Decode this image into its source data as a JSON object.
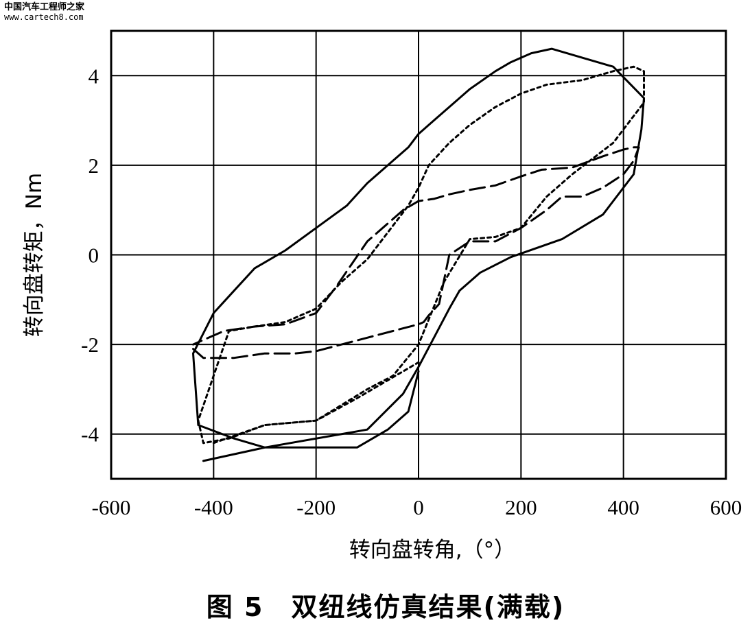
{
  "watermark": {
    "site_name": "中国汽车工程师之家",
    "url": "www.cartech8.com"
  },
  "caption": "图 5　双纽线仿真结果(满载)",
  "chart_data": {
    "type": "line",
    "xlabel": "转向盘转角,（°）",
    "ylabel": "转向盘转矩，Nm",
    "xlim": [
      -600,
      600
    ],
    "ylim": [
      -5,
      5
    ],
    "x_ticks": [
      -600,
      -400,
      -200,
      0,
      200,
      400,
      600
    ],
    "y_ticks": [
      4,
      2,
      0,
      -2,
      -4
    ],
    "grid": true,
    "series": [
      {
        "style": "solid",
        "x": [
          -420,
          -300,
          -100,
          -30,
          0,
          60,
          80,
          120,
          180,
          280,
          360,
          420,
          435,
          440,
          380,
          320,
          260,
          220,
          180,
          150,
          100,
          60,
          20,
          0,
          -20,
          -60,
          -100,
          -140,
          -200,
          -260,
          -320,
          -360,
          -400,
          -440,
          -430,
          -360,
          -300,
          -260,
          -200,
          -120,
          -60,
          -20,
          0
        ],
        "y": [
          -4.6,
          -4.3,
          -3.9,
          -3.1,
          -2.5,
          -1.2,
          -0.8,
          -0.4,
          -0.05,
          0.35,
          0.9,
          1.8,
          2.8,
          3.5,
          4.2,
          4.4,
          4.6,
          4.5,
          4.3,
          4.1,
          3.7,
          3.3,
          2.9,
          2.7,
          2.4,
          2.0,
          1.6,
          1.1,
          0.6,
          0.1,
          -0.3,
          -0.8,
          -1.3,
          -2.2,
          -3.8,
          -4.1,
          -4.3,
          -4.3,
          -4.3,
          -4.3,
          -3.9,
          -3.5,
          -2.6
        ]
      },
      {
        "style": "dotted",
        "x": [
          -400,
          -300,
          -200,
          -100,
          -50,
          0,
          50,
          100,
          150,
          200,
          250,
          300,
          380,
          440,
          440,
          420,
          380,
          320,
          250,
          200,
          150,
          100,
          60,
          20,
          0,
          -20,
          -60,
          -100,
          -150,
          -200,
          -260,
          -320,
          -370,
          -430,
          -420,
          -370,
          -300,
          -200,
          -120,
          -60,
          0
        ],
        "y": [
          -4.2,
          -3.8,
          -3.7,
          -3.0,
          -2.7,
          -2.0,
          -0.6,
          0.35,
          0.4,
          0.6,
          1.3,
          1.8,
          2.5,
          3.4,
          4.1,
          4.2,
          4.1,
          3.9,
          3.8,
          3.6,
          3.3,
          2.9,
          2.5,
          2.0,
          1.5,
          1.1,
          0.5,
          -0.1,
          -0.6,
          -1.2,
          -1.5,
          -1.6,
          -1.7,
          -3.7,
          -4.2,
          -4.1,
          -3.8,
          -3.7,
          -3.2,
          -2.8,
          -2.4
        ]
      },
      {
        "style": "dashed",
        "x": [
          -440,
          -420,
          -360,
          -300,
          -240,
          -200,
          -150,
          -100,
          -50,
          0,
          10,
          20,
          40,
          60,
          100,
          150,
          200,
          250,
          280,
          320,
          360,
          400,
          420,
          430,
          420,
          400,
          360,
          300,
          240,
          200,
          150,
          100,
          60,
          30,
          0,
          -30,
          -100,
          -160,
          -200,
          -260,
          -320,
          -380,
          -440
        ],
        "y": [
          -2.1,
          -2.3,
          -2.3,
          -2.2,
          -2.2,
          -2.15,
          -2.0,
          -1.85,
          -1.7,
          -1.55,
          -1.5,
          -1.35,
          -1.1,
          0.0,
          0.3,
          0.3,
          0.6,
          1.0,
          1.3,
          1.3,
          1.5,
          1.8,
          2.1,
          2.4,
          2.4,
          2.35,
          2.2,
          1.95,
          1.9,
          1.75,
          1.55,
          1.45,
          1.35,
          1.25,
          1.2,
          1.0,
          0.3,
          -0.7,
          -1.3,
          -1.55,
          -1.6,
          -1.7,
          -2.0
        ]
      }
    ]
  }
}
